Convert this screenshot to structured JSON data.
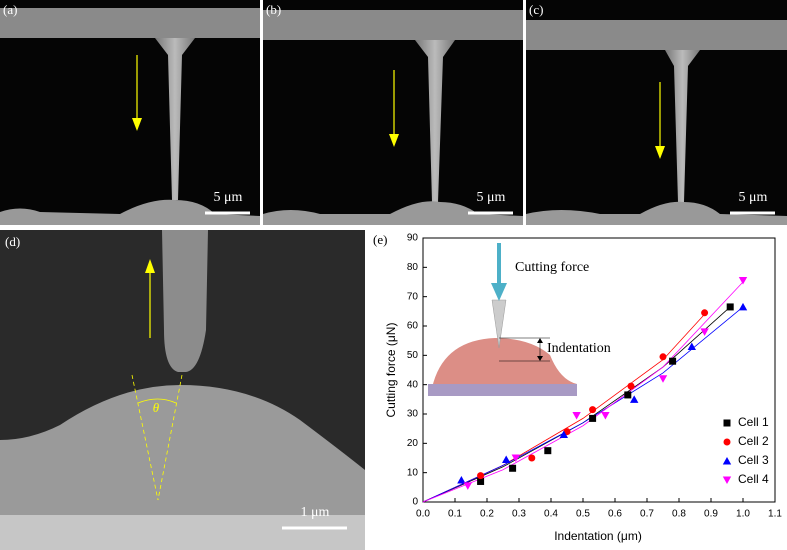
{
  "panels": {
    "a": {
      "label": "(a)",
      "scale": "5 μm"
    },
    "b": {
      "label": "(b)",
      "scale": "5 μm"
    },
    "c": {
      "label": "(c)",
      "scale": "5 μm"
    },
    "d": {
      "label": "(d)",
      "scale": "1 μm",
      "angle": "θ"
    },
    "e": {
      "label": "(e)"
    }
  },
  "chart_data": {
    "type": "scatter",
    "x_label": "Indentation (μm)",
    "y_label": "Cutting force (μN)",
    "annotations": [
      "Cutting force",
      "Indentation"
    ],
    "xlim": [
      0,
      1.1
    ],
    "ylim": [
      0,
      90
    ],
    "xticks": [
      {
        "value": 0,
        "label": "0.0"
      },
      0.1,
      0.2,
      0.3,
      0.4,
      0.5,
      0.6,
      0.7,
      0.8,
      0.9,
      {
        "value": 1,
        "label": "1.0"
      },
      1.1
    ],
    "yticks": [
      0,
      10,
      20,
      30,
      40,
      50,
      60,
      70,
      80,
      90
    ],
    "legend": "lower right",
    "series": [
      {
        "name": "Cell 1",
        "color": "#000000",
        "marker": "square",
        "x": [
          0.18,
          0.28,
          0.39,
          0.53,
          0.64,
          0.78,
          0.96
        ],
        "values": [
          7,
          11.5,
          17.5,
          28.5,
          36.5,
          48,
          66.5
        ]
      },
      {
        "name": "Cell 2",
        "color": "#ff0000",
        "marker": "circle",
        "x": [
          0.18,
          0.34,
          0.45,
          0.53,
          0.65,
          0.75,
          0.88
        ],
        "values": [
          9,
          15,
          24,
          31.5,
          39.5,
          49.5,
          64.5
        ]
      },
      {
        "name": "Cell 3",
        "color": "#0000ff",
        "marker": "triangle-up",
        "x": [
          0.12,
          0.26,
          0.44,
          0.66,
          0.84,
          1.0
        ],
        "values": [
          7.5,
          14.5,
          23,
          35,
          53,
          66.5
        ]
      },
      {
        "name": "Cell 4",
        "color": "#ff00ff",
        "marker": "triangle-down",
        "x": [
          0.14,
          0.29,
          0.48,
          0.57,
          0.75,
          0.88,
          1.0
        ],
        "values": [
          5.5,
          15,
          29.5,
          29.5,
          42,
          58,
          75.5
        ]
      }
    ],
    "fits": [
      {
        "color": "#000000",
        "x": [
          0,
          0.25,
          0.5,
          0.75,
          0.96
        ],
        "y": [
          0,
          12,
          27,
          46,
          66.5
        ]
      },
      {
        "color": "#ff0000",
        "x": [
          0,
          0.25,
          0.5,
          0.75,
          0.88
        ],
        "y": [
          0,
          12.5,
          28.5,
          48.5,
          64
        ]
      },
      {
        "color": "#0000ff",
        "x": [
          0,
          0.25,
          0.5,
          0.75,
          1.0
        ],
        "y": [
          0,
          12.5,
          27,
          44,
          66.5
        ]
      },
      {
        "color": "#ff00ff",
        "x": [
          0,
          0.25,
          0.5,
          0.75,
          1.0
        ],
        "y": [
          0,
          11,
          26,
          46,
          75
        ]
      }
    ]
  }
}
